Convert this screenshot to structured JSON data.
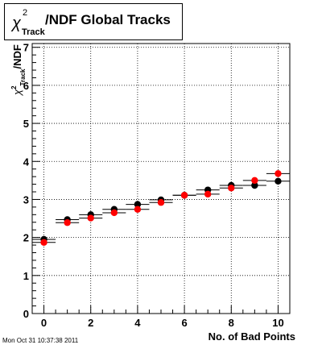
{
  "title": {
    "symbol": "χ",
    "superscript": "2",
    "subscript": "Track",
    "rest": "/NDF  Global Tracks"
  },
  "footer": {
    "timestamp": "Mon Oct 31 10:37:38 2011"
  },
  "colors": {
    "series_black": "#000000",
    "series_red": "#ff0000",
    "grid": "#000000",
    "frame": "#000000"
  },
  "chart_data": {
    "type": "scatter",
    "title": "χ²Track/NDF  Global Tracks",
    "xlabel": "No. of Bad Points",
    "ylabel": {
      "symbol": "χ",
      "superscript": "2",
      "subscript": "Track",
      "rest": "/NDF"
    },
    "xlim": [
      -0.5,
      10.5
    ],
    "ylim": [
      0,
      7.1
    ],
    "x_ticks": [
      0,
      2,
      4,
      6,
      8,
      10
    ],
    "y_ticks": [
      0,
      1,
      2,
      3,
      4,
      5,
      6,
      7
    ],
    "grid": true,
    "x": [
      0,
      1,
      2,
      3,
      4,
      5,
      6,
      7,
      8,
      9,
      10
    ],
    "x_err": 0.5,
    "series": [
      {
        "color": "#000000",
        "values": [
          1.95,
          2.47,
          2.6,
          2.74,
          2.87,
          2.99,
          3.11,
          3.25,
          3.37,
          3.37,
          3.48
        ]
      },
      {
        "color": "#ff0000",
        "values": [
          1.87,
          2.39,
          2.51,
          2.65,
          2.74,
          2.92,
          3.11,
          3.14,
          3.3,
          3.5,
          3.68
        ]
      }
    ]
  }
}
